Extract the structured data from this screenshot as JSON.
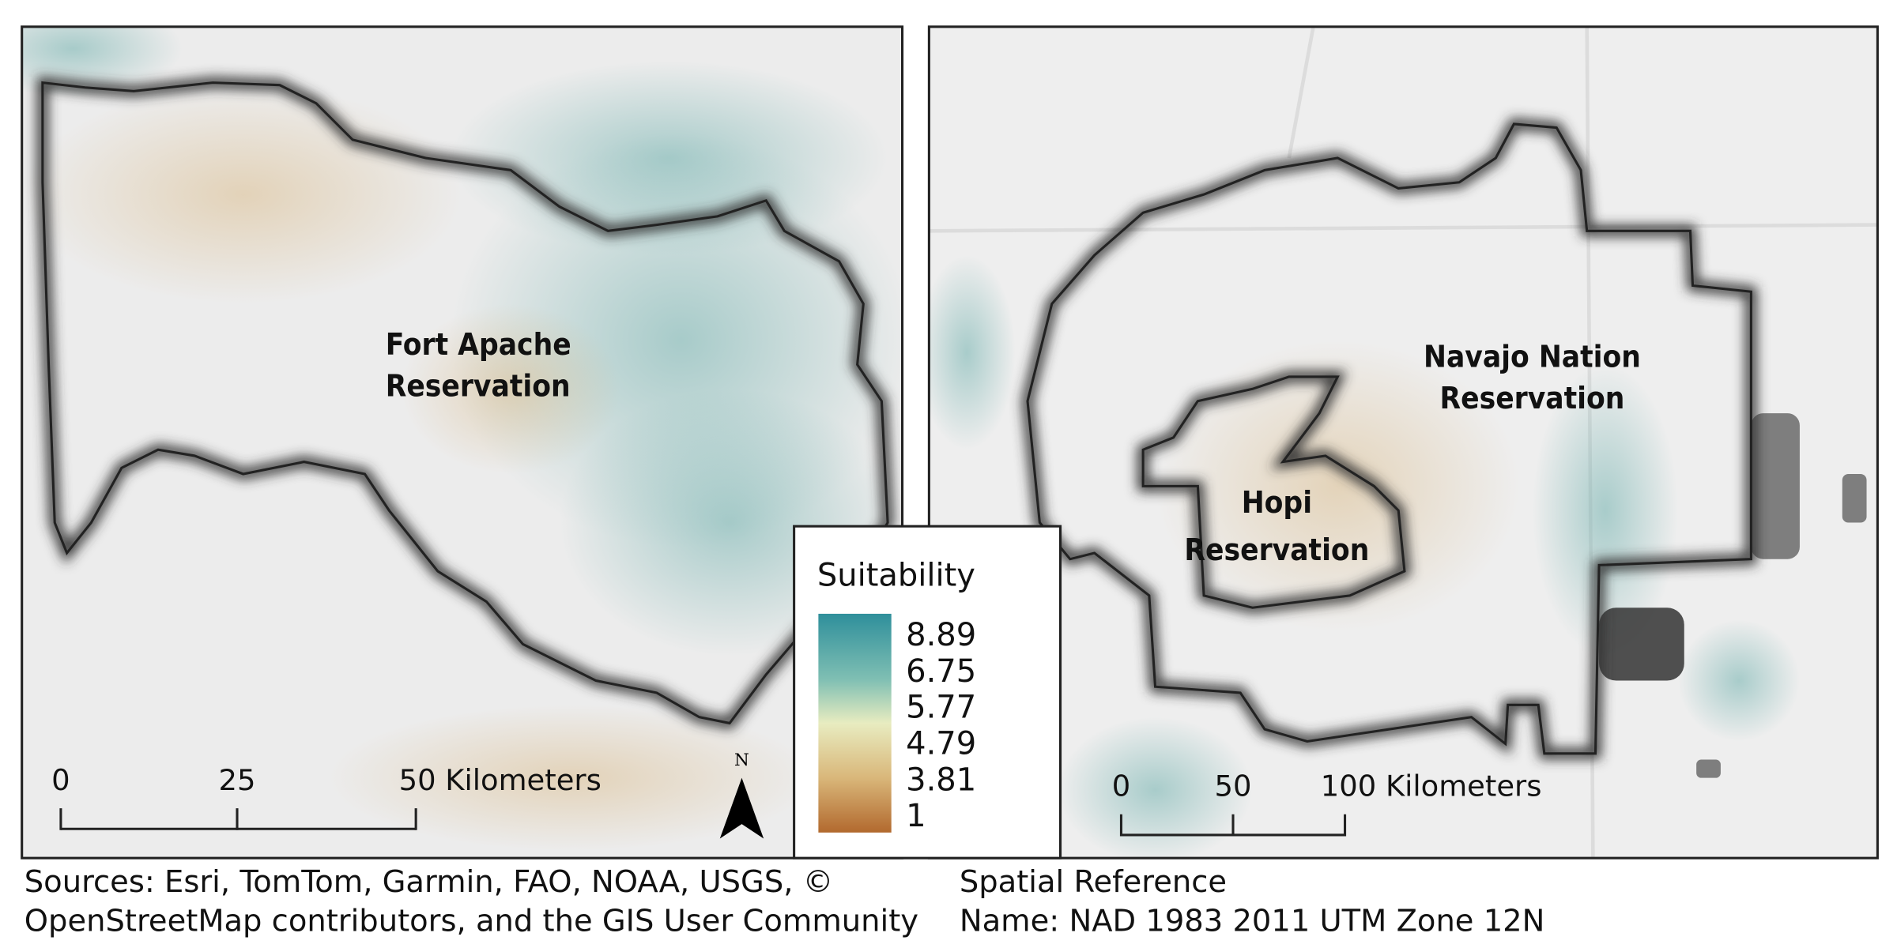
{
  "left_map": {
    "label": [
      "Fort Apache",
      "Reservation"
    ],
    "north": "N",
    "scale_bar": [
      "0",
      "25",
      "50 Kilometers"
    ]
  },
  "right_map": {
    "navajo_label": [
      "Navajo Nation",
      "Reservation"
    ],
    "hopi_label": [
      "Hopi",
      "Reservation"
    ],
    "scale_bar": [
      "0",
      "50",
      "100 Kilometers"
    ]
  },
  "legend": {
    "title": "Suitability",
    "stops": [
      "8.89",
      "6.75",
      "5.77",
      "4.79",
      "3.81",
      "1"
    ]
  },
  "footer": {
    "sources": [
      "Sources: Esri, TomTom, Garmin, FAO, NOAA, USGS, ©",
      "OpenStreetMap contributors, and the GIS User Community"
    ],
    "spatial_reference": [
      "Spatial Reference",
      "Name: NAD 1983 2011 UTM Zone 12N"
    ]
  }
}
